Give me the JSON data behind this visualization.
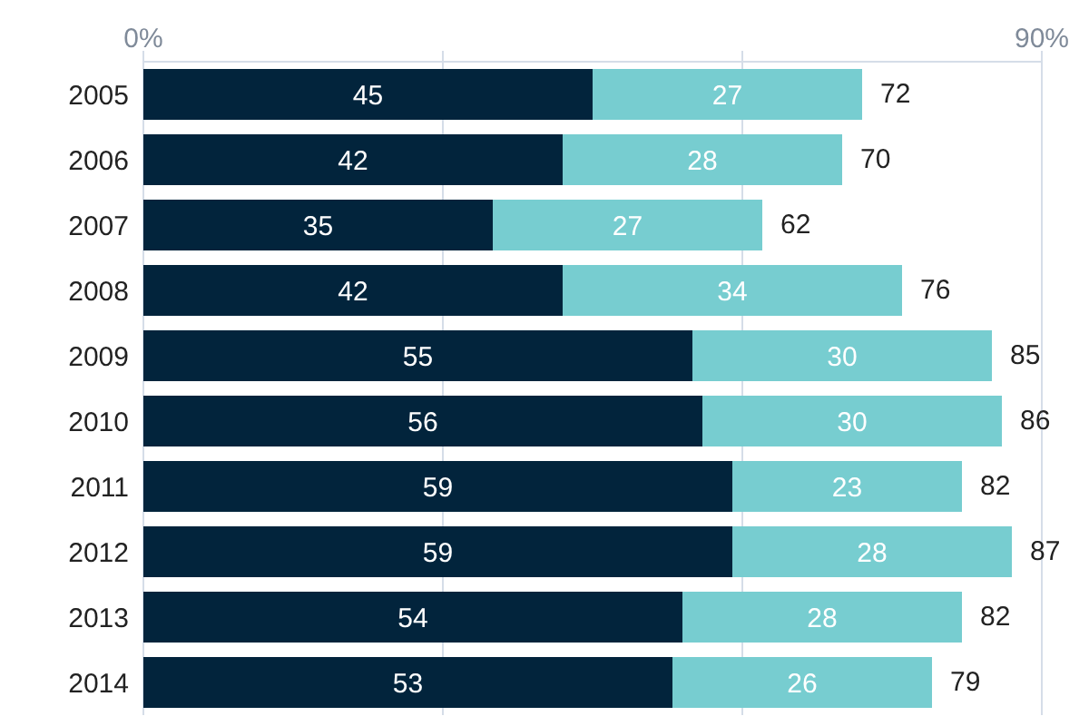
{
  "chart_data": {
    "type": "bar",
    "orientation": "horizontal",
    "stacked": true,
    "data_labels": true,
    "grid": "x",
    "legend": false,
    "categories": [
      "2005",
      "2006",
      "2007",
      "2008",
      "2009",
      "2010",
      "2011",
      "2012",
      "2013",
      "2014"
    ],
    "series": [
      {
        "color": "#02243c",
        "values": [
          45,
          42,
          35,
          42,
          55,
          56,
          59,
          59,
          54,
          53
        ]
      },
      {
        "color": "#77cdd0",
        "values": [
          27,
          28,
          27,
          34,
          30,
          30,
          23,
          28,
          28,
          26
        ]
      }
    ],
    "totals": [
      "72",
      "70",
      "62",
      "76",
      "85",
      "86",
      "82",
      "87",
      "82",
      "79"
    ],
    "xlim": [
      0,
      90
    ],
    "xticks": [
      {
        "value": 0,
        "label": "0%"
      },
      {
        "value": 30,
        "label": null
      },
      {
        "value": 60,
        "label": null
      },
      {
        "value": 90,
        "label": "90%"
      }
    ]
  }
}
